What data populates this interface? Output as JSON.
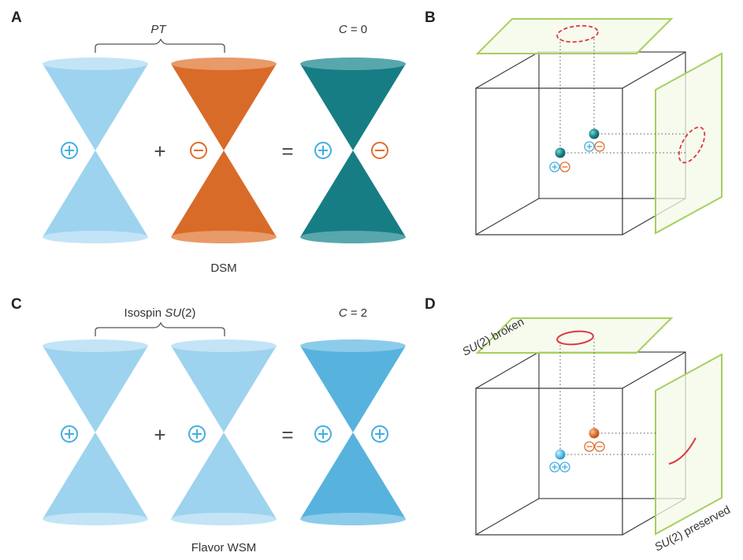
{
  "colors": {
    "plus": "#42aee0",
    "minus": "#de6e2c",
    "light_cone": "#9dd3ef",
    "orange_cone": "#d96b28",
    "teal_cone": "#177d85",
    "blue_cone": "#57b3dd",
    "plane_green": "#a7cf5f",
    "surface_red": "#e0383e",
    "teal_ball": "#1f8a92",
    "blue_ball": "#5cc0ea",
    "orange_ball": "#e2752f"
  },
  "panels": {
    "A": {
      "letter": "A",
      "bracket_label_main": "PT",
      "result_label_prefix": "C",
      "result_label_suffix": " = 0",
      "plus_op": "+",
      "equals_op": "=",
      "caption": "DSM"
    },
    "B": {
      "letter": "B"
    },
    "C": {
      "letter": "C",
      "bracket_label_main": "Isospin ",
      "bracket_label_italic": "SU",
      "bracket_label_tail": "(2)",
      "result_label_prefix": "C",
      "result_label_suffix": " = 2",
      "plus_op": "+",
      "equals_op": "=",
      "caption": "Flavor WSM"
    },
    "D": {
      "letter": "D",
      "top_plane_label_italic": "SU",
      "top_plane_label_tail": "(2) broken",
      "side_plane_label_italic": "SU",
      "side_plane_label_tail": "(2) preserved"
    }
  }
}
